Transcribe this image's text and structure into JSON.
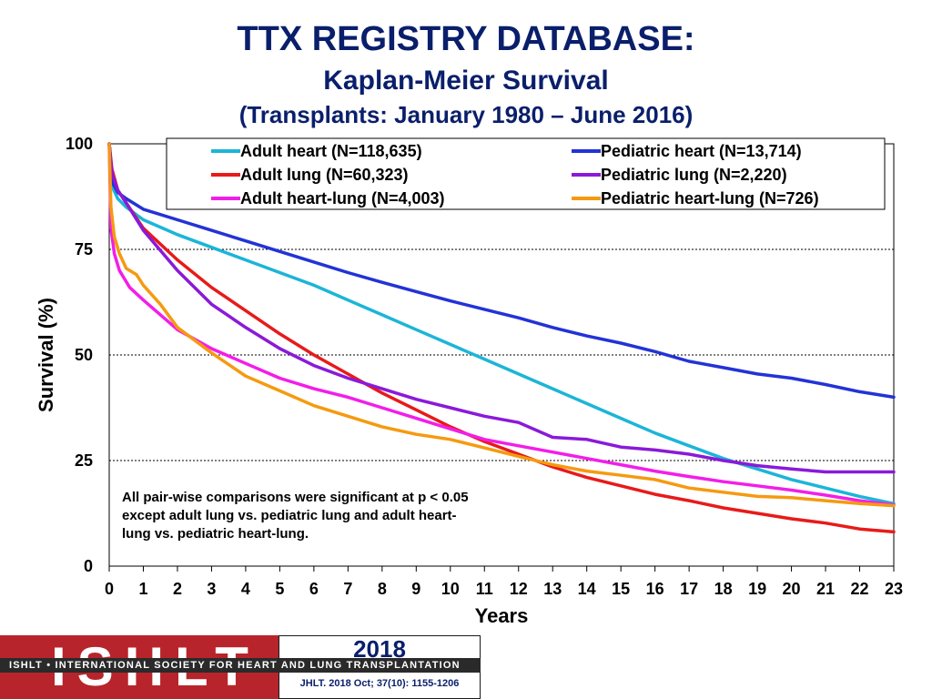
{
  "titles": {
    "main": "TTX REGISTRY DATABASE:",
    "sub1": "Kaplan-Meier Survival",
    "sub2": "(Transplants: January 1980 – June 2016)"
  },
  "chart_data": {
    "type": "line",
    "title": "TTX REGISTRY DATABASE:",
    "xlabel": "Years",
    "ylabel": "Survival (%)",
    "xlim": [
      0,
      23
    ],
    "ylim": [
      0,
      100
    ],
    "x_ticks": [
      0,
      1,
      2,
      3,
      4,
      5,
      6,
      7,
      8,
      9,
      10,
      11,
      12,
      13,
      14,
      15,
      16,
      17,
      18,
      19,
      20,
      21,
      22,
      23
    ],
    "y_ticks": [
      0,
      25,
      50,
      75,
      100
    ],
    "grid": "horizontal dashed",
    "legend": "top",
    "series": [
      {
        "name": "Adult heart (N=118,635)",
        "color": "#1cb5d8",
        "points": [
          [
            0,
            100
          ],
          [
            0.08,
            90
          ],
          [
            0.25,
            87
          ],
          [
            0.5,
            85
          ],
          [
            1,
            82
          ],
          [
            2,
            78.5
          ],
          [
            3,
            75.5
          ],
          [
            4,
            72.5
          ],
          [
            5,
            69.5
          ],
          [
            6,
            66.5
          ],
          [
            7,
            63
          ],
          [
            8,
            59.5
          ],
          [
            9,
            56
          ],
          [
            10,
            52.5
          ],
          [
            11,
            49
          ],
          [
            12,
            45.5
          ],
          [
            13,
            42
          ],
          [
            14,
            38.5
          ],
          [
            15,
            35
          ],
          [
            16,
            31.5
          ],
          [
            17,
            28.5
          ],
          [
            18,
            25.5
          ],
          [
            19,
            23
          ],
          [
            20,
            20.5
          ],
          [
            21,
            18.5
          ],
          [
            22,
            16.5
          ],
          [
            23,
            14.8
          ]
        ]
      },
      {
        "name": "Adult lung (N=60,323)",
        "color": "#e81a1a",
        "points": [
          [
            0,
            100
          ],
          [
            0.08,
            94
          ],
          [
            0.25,
            89
          ],
          [
            0.5,
            86
          ],
          [
            1,
            80
          ],
          [
            2,
            72.5
          ],
          [
            3,
            66
          ],
          [
            4,
            60.5
          ],
          [
            5,
            55
          ],
          [
            6,
            50
          ],
          [
            7,
            45.5
          ],
          [
            8,
            41
          ],
          [
            9,
            37
          ],
          [
            10,
            33
          ],
          [
            11,
            29.5
          ],
          [
            12,
            26.5
          ],
          [
            13,
            23.5
          ],
          [
            14,
            21
          ],
          [
            15,
            19
          ],
          [
            16,
            17
          ],
          [
            17,
            15.5
          ],
          [
            18,
            13.8
          ],
          [
            19,
            12.5
          ],
          [
            20,
            11.2
          ],
          [
            21,
            10.2
          ],
          [
            22,
            8.8
          ],
          [
            23,
            8.1
          ]
        ]
      },
      {
        "name": "Adult heart-lung (N=4,003)",
        "color": "#f21ee8",
        "points": [
          [
            0,
            100
          ],
          [
            0.05,
            80
          ],
          [
            0.15,
            74
          ],
          [
            0.3,
            70
          ],
          [
            0.6,
            66
          ],
          [
            1,
            63
          ],
          [
            2,
            56
          ],
          [
            3,
            51.5
          ],
          [
            4,
            48
          ],
          [
            5,
            44.5
          ],
          [
            6,
            42
          ],
          [
            7,
            40
          ],
          [
            8,
            37.5
          ],
          [
            9,
            35
          ],
          [
            10,
            32.5
          ],
          [
            11,
            30
          ],
          [
            12,
            28.5
          ],
          [
            13,
            27
          ],
          [
            14,
            25.5
          ],
          [
            15,
            24
          ],
          [
            16,
            22.5
          ],
          [
            17,
            21.2
          ],
          [
            18,
            20
          ],
          [
            19,
            19
          ],
          [
            20,
            18
          ],
          [
            21,
            16.8
          ],
          [
            22,
            15.5
          ],
          [
            23,
            14.5
          ]
        ]
      },
      {
        "name": "Pediatric heart (N=13,714)",
        "color": "#2233d6",
        "points": [
          [
            0,
            100
          ],
          [
            0.08,
            91
          ],
          [
            0.25,
            88.5
          ],
          [
            0.5,
            87
          ],
          [
            1,
            84.5
          ],
          [
            2,
            82
          ],
          [
            3,
            79.5
          ],
          [
            4,
            77
          ],
          [
            5,
            74.5
          ],
          [
            6,
            72
          ],
          [
            7,
            69.5
          ],
          [
            8,
            67.2
          ],
          [
            9,
            65
          ],
          [
            10,
            62.8
          ],
          [
            11,
            60.8
          ],
          [
            12,
            58.8
          ],
          [
            13,
            56.5
          ],
          [
            14,
            54.5
          ],
          [
            15,
            52.8
          ],
          [
            16,
            50.8
          ],
          [
            17,
            48.5
          ],
          [
            18,
            47
          ],
          [
            19,
            45.5
          ],
          [
            20,
            44.5
          ],
          [
            21,
            43
          ],
          [
            22,
            41.3
          ],
          [
            23,
            40
          ]
        ]
      },
      {
        "name": "Pediatric lung (N=2,220)",
        "color": "#8a1ad8",
        "points": [
          [
            0,
            100
          ],
          [
            0.08,
            93
          ],
          [
            0.25,
            89
          ],
          [
            0.5,
            86
          ],
          [
            1,
            79.5
          ],
          [
            2,
            70
          ],
          [
            3,
            62
          ],
          [
            4,
            56.5
          ],
          [
            5,
            51.5
          ],
          [
            6,
            47.5
          ],
          [
            7,
            44.5
          ],
          [
            8,
            42
          ],
          [
            9,
            39.5
          ],
          [
            10,
            37.5
          ],
          [
            11,
            35.5
          ],
          [
            12,
            34
          ],
          [
            13,
            30.5
          ],
          [
            14,
            30
          ],
          [
            15,
            28.2
          ],
          [
            16,
            27.5
          ],
          [
            17,
            26.5
          ],
          [
            18,
            25
          ],
          [
            19,
            23.8
          ],
          [
            20,
            23
          ],
          [
            21,
            22.3
          ],
          [
            22,
            22.3
          ],
          [
            23,
            22.3
          ]
        ]
      },
      {
        "name": "Pediatric heart-lung (N=726)",
        "color": "#f59a10",
        "points": [
          [
            0,
            100
          ],
          [
            0.05,
            85
          ],
          [
            0.15,
            78
          ],
          [
            0.3,
            74
          ],
          [
            0.5,
            70.5
          ],
          [
            0.8,
            69
          ],
          [
            1,
            66.5
          ],
          [
            1.5,
            62
          ],
          [
            2,
            56.5
          ],
          [
            3,
            50.5
          ],
          [
            4,
            45
          ],
          [
            5,
            41.5
          ],
          [
            6,
            38
          ],
          [
            7,
            35.5
          ],
          [
            8,
            33
          ],
          [
            9,
            31.2
          ],
          [
            10,
            30
          ],
          [
            11,
            28
          ],
          [
            12,
            26
          ],
          [
            13,
            24
          ],
          [
            14,
            22.5
          ],
          [
            15,
            21.5
          ],
          [
            16,
            20.5
          ],
          [
            17,
            18.5
          ],
          [
            18,
            17.5
          ],
          [
            19,
            16.5
          ],
          [
            20,
            16.2
          ],
          [
            21,
            15.5
          ],
          [
            22,
            14.8
          ],
          [
            23,
            14.3
          ]
        ]
      }
    ],
    "annotation": "All pair-wise comparisons were significant at p < 0.05 except adult lung vs. pediatric lung and adult heart-lung vs. pediatric heart-lung."
  },
  "note_lines": [
    "All pair-wise comparisons were significant at p < 0.05",
    "except adult lung vs. pediatric lung and adult heart-",
    "lung vs. pediatric heart-lung."
  ],
  "footer": {
    "logo_text": "ISHLT",
    "band_text": "ISHLT • INTERNATIONAL SOCIETY FOR HEART AND LUNG TRANSPLANTATION",
    "year": "2018",
    "citation": "JHLT. 2018 Oct; 37(10): 1155-1206"
  }
}
